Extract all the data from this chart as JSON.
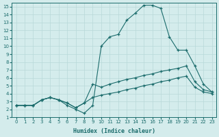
{
  "xlabel": "Humidex (Indice chaleur)",
  "bg_color": "#d4ecec",
  "grid_color": "#b8d8d8",
  "line_color": "#1a6b6b",
  "xlim": [
    -0.5,
    23.5
  ],
  "ylim": [
    1,
    15.5
  ],
  "xticks": [
    0,
    1,
    2,
    3,
    4,
    5,
    6,
    7,
    8,
    9,
    10,
    11,
    12,
    13,
    14,
    15,
    16,
    17,
    18,
    19,
    20,
    21,
    22,
    23
  ],
  "yticks": [
    1,
    2,
    3,
    4,
    5,
    6,
    7,
    8,
    9,
    10,
    11,
    12,
    13,
    14,
    15
  ],
  "line1_x": [
    0,
    1,
    2,
    3,
    4,
    5,
    6,
    7,
    8,
    9,
    10,
    11,
    12,
    13,
    14,
    15,
    16,
    17,
    18,
    19,
    20,
    21,
    22,
    23
  ],
  "line1_y": [
    2.5,
    2.5,
    2.5,
    3.2,
    3.5,
    3.2,
    2.5,
    2.0,
    1.5,
    2.5,
    10.0,
    11.2,
    11.5,
    13.3,
    14.2,
    15.2,
    15.2,
    14.8,
    11.2,
    9.5,
    9.5,
    7.5,
    5.2,
    4.2
  ],
  "line2_x": [
    0,
    1,
    2,
    3,
    4,
    5,
    6,
    7,
    8,
    9,
    10,
    11,
    12,
    13,
    14,
    15,
    16,
    17,
    18,
    19,
    20,
    21,
    22,
    23
  ],
  "line2_y": [
    2.5,
    2.5,
    2.5,
    3.2,
    3.5,
    3.2,
    2.8,
    2.2,
    2.8,
    5.2,
    4.8,
    5.2,
    5.5,
    5.8,
    6.0,
    6.3,
    6.5,
    6.8,
    7.0,
    7.2,
    7.5,
    5.5,
    4.5,
    4.2
  ],
  "line3_x": [
    0,
    1,
    2,
    3,
    4,
    5,
    6,
    7,
    8,
    9,
    10,
    11,
    12,
    13,
    14,
    15,
    16,
    17,
    18,
    19,
    20,
    21,
    22,
    23
  ],
  "line3_y": [
    2.5,
    2.5,
    2.5,
    3.2,
    3.5,
    3.2,
    2.8,
    2.2,
    2.8,
    3.5,
    3.8,
    4.0,
    4.2,
    4.5,
    4.7,
    5.0,
    5.2,
    5.5,
    5.7,
    6.0,
    6.2,
    4.8,
    4.2,
    4.0
  ]
}
